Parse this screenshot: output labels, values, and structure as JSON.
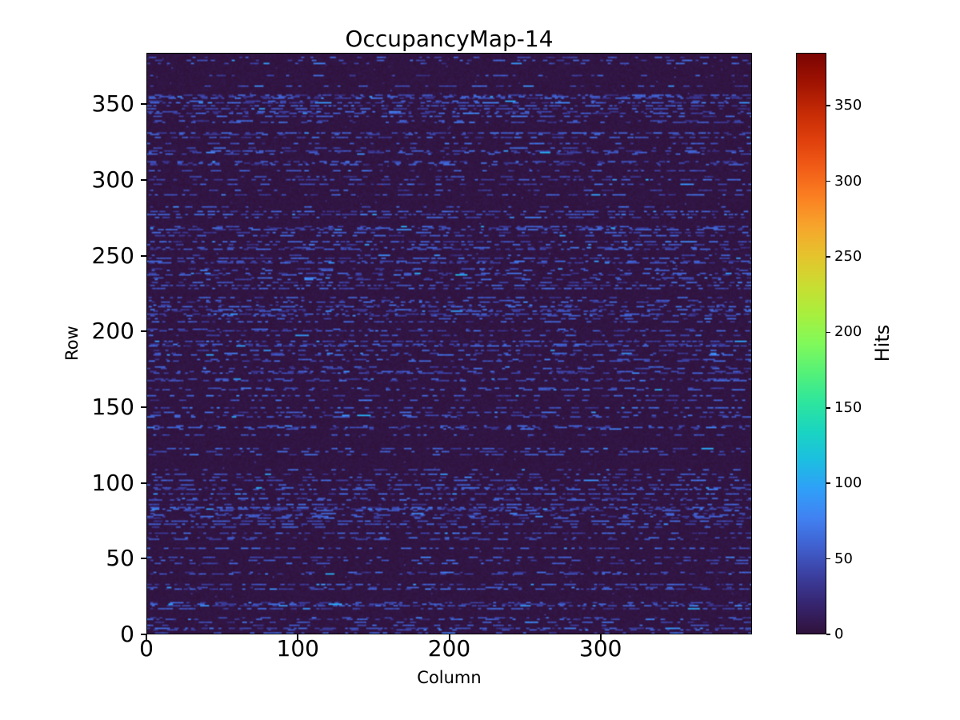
{
  "figure": {
    "title": "OccupancyMap-14",
    "background_color": "#ffffff",
    "spine_color": "#000000"
  },
  "chart_data": {
    "type": "heatmap",
    "title": "OccupancyMap-14",
    "xlabel": "Column",
    "ylabel": "Row",
    "x_range": [
      0,
      400
    ],
    "y_range": [
      0,
      384
    ],
    "grid_cols": 400,
    "grid_rows": 384,
    "x_ticks": [
      "0",
      "100",
      "200",
      "300"
    ],
    "x_tick_values": [
      0,
      100,
      200,
      300
    ],
    "y_ticks": [
      "0",
      "50",
      "100",
      "150",
      "200",
      "250",
      "300",
      "350"
    ],
    "y_tick_values": [
      0,
      50,
      100,
      150,
      200,
      250,
      300,
      350
    ],
    "origin": "lower",
    "grid_on": false,
    "colorbar": {
      "label": "Hits",
      "ticks": [
        "0",
        "50",
        "100",
        "150",
        "200",
        "250",
        "300",
        "350"
      ],
      "tick_values": [
        0,
        50,
        100,
        150,
        200,
        250,
        300,
        350
      ],
      "vmin": 0,
      "vmax": 385,
      "position": "right"
    },
    "colormap": {
      "name": "turbo",
      "lut": [
        [
          0.0,
          "#30123b"
        ],
        [
          0.05,
          "#36246f"
        ],
        [
          0.1,
          "#3b3f9f"
        ],
        [
          0.15,
          "#4060cf"
        ],
        [
          0.2,
          "#4182f2"
        ],
        [
          0.25,
          "#2fa0f8"
        ],
        [
          0.3,
          "#1cbfe0"
        ],
        [
          0.35,
          "#1ad5c0"
        ],
        [
          0.4,
          "#2ee69c"
        ],
        [
          0.45,
          "#55f178"
        ],
        [
          0.5,
          "#80f95a"
        ],
        [
          0.55,
          "#a8ef3e"
        ],
        [
          0.6,
          "#c9dd31"
        ],
        [
          0.65,
          "#e5c42d"
        ],
        [
          0.7,
          "#f6a62c"
        ],
        [
          0.75,
          "#fb8222"
        ],
        [
          0.8,
          "#f25e18"
        ],
        [
          0.85,
          "#e0400c"
        ],
        [
          0.9,
          "#c42a05"
        ],
        [
          0.95,
          "#a01302"
        ],
        [
          1.0,
          "#7a0403"
        ]
      ]
    },
    "pattern": {
      "description": "Sparse occupancy map: roughly one third of the 384 rows contain horizontal runs of hit pixels (typical 25-80 hits per pixel, run length 2-12 columns) over a near-zero dark background (0-6 hits). A single hottest pixel (~385 hits) sets the color scale maximum.",
      "seed": 14,
      "row_active_probability": 0.36,
      "dash_run_length_range": [
        2,
        12
      ],
      "dash_value_range": [
        26,
        90
      ],
      "background_value_range": [
        0,
        6
      ],
      "max_value": 385
    }
  }
}
